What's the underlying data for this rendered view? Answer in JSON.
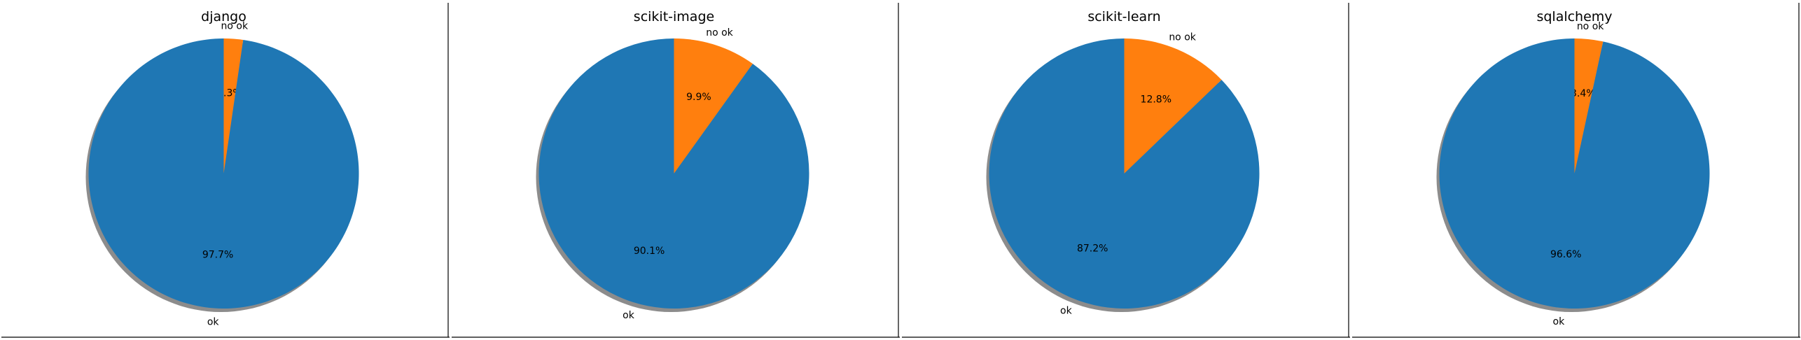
{
  "chart_data": [
    {
      "type": "pie",
      "title": "django",
      "slices": [
        {
          "label": "no ok",
          "value": 2.3,
          "pct_label": "2.3%"
        },
        {
          "label": "ok",
          "value": 97.7,
          "pct_label": "97.7%"
        }
      ],
      "colors": {
        "no ok": "#ff7f0e",
        "ok": "#1f77b4"
      }
    },
    {
      "type": "pie",
      "title": "scikit-image",
      "slices": [
        {
          "label": "no ok",
          "value": 9.9,
          "pct_label": "9.9%"
        },
        {
          "label": "ok",
          "value": 90.1,
          "pct_label": "90.1%"
        }
      ],
      "colors": {
        "no ok": "#ff7f0e",
        "ok": "#1f77b4"
      }
    },
    {
      "type": "pie",
      "title": "scikit-learn",
      "slices": [
        {
          "label": "no ok",
          "value": 12.8,
          "pct_label": "12.8%"
        },
        {
          "label": "ok",
          "value": 87.2,
          "pct_label": "87.2%"
        }
      ],
      "colors": {
        "no ok": "#ff7f0e",
        "ok": "#1f77b4"
      }
    },
    {
      "type": "pie",
      "title": "sqlalchemy",
      "slices": [
        {
          "label": "no ok",
          "value": 3.4,
          "pct_label": "3.4%"
        },
        {
          "label": "ok",
          "value": 96.6,
          "pct_label": "96.6%"
        }
      ],
      "colors": {
        "no ok": "#ff7f0e",
        "ok": "#1f77b4"
      }
    }
  ]
}
